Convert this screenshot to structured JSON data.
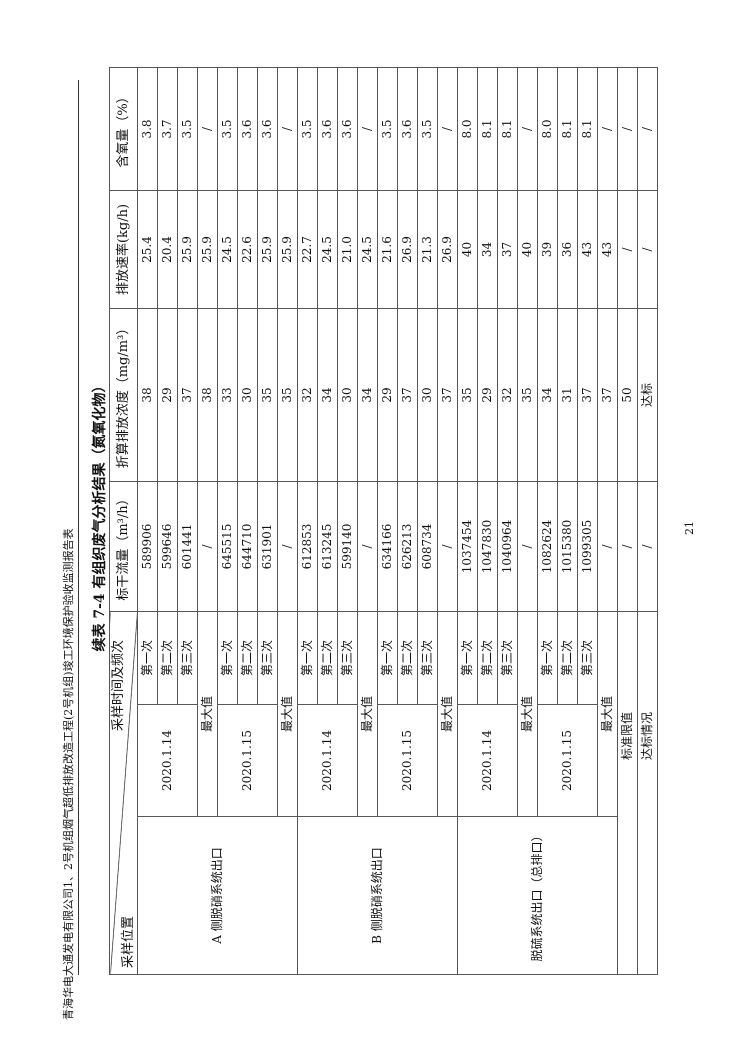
{
  "page_header": "青海华电大通发电有限公司1、2号机组烟气超低排放改造工程(2号机组)竣工环境保护验收监测报告表",
  "title": "续表 7-4  有组织废气分析结果（氮氧化物）",
  "page_number": "21",
  "columns": {
    "location": "采样位置",
    "time_freq": "采样时间及频次",
    "flow": "标干流量（m³/h）",
    "concentration": "折算排放浓度（mg/m³）",
    "rate": "排放速率(kg/h)",
    "oxygen": "含氧量（%）"
  },
  "max_label": "最大值",
  "locations": [
    {
      "name": "A 侧脱硝系统出口",
      "dates": [
        {
          "date": "2020.1.14",
          "samples": [
            {
              "freq": "第一次",
              "flow": "589906",
              "conc": "38",
              "rate": "25.4",
              "o2": "3.8"
            },
            {
              "freq": "第二次",
              "flow": "599646",
              "conc": "29",
              "rate": "20.4",
              "o2": "3.7"
            },
            {
              "freq": "第三次",
              "flow": "601441",
              "conc": "37",
              "rate": "25.9",
              "o2": "3.5"
            }
          ],
          "max": {
            "flow": "/",
            "conc": "38",
            "rate": "25.9",
            "o2": "/"
          }
        },
        {
          "date": "2020.1.15",
          "samples": [
            {
              "freq": "第一次",
              "flow": "645515",
              "conc": "33",
              "rate": "24.5",
              "o2": "3.5"
            },
            {
              "freq": "第二次",
              "flow": "644710",
              "conc": "30",
              "rate": "22.6",
              "o2": "3.6"
            },
            {
              "freq": "第三次",
              "flow": "631901",
              "conc": "35",
              "rate": "25.9",
              "o2": "3.6"
            }
          ],
          "max": {
            "flow": "/",
            "conc": "35",
            "rate": "25.9",
            "o2": "/"
          }
        }
      ]
    },
    {
      "name": "B 侧脱硝系统出口",
      "dates": [
        {
          "date": "2020.1.14",
          "samples": [
            {
              "freq": "第一次",
              "flow": "612853",
              "conc": "32",
              "rate": "22.7",
              "o2": "3.5"
            },
            {
              "freq": "第二次",
              "flow": "613245",
              "conc": "34",
              "rate": "24.5",
              "o2": "3.6"
            },
            {
              "freq": "第三次",
              "flow": "599140",
              "conc": "30",
              "rate": "21.0",
              "o2": "3.6"
            }
          ],
          "max": {
            "flow": "/",
            "conc": "34",
            "rate": "24.5",
            "o2": "/"
          }
        },
        {
          "date": "2020.1.15",
          "samples": [
            {
              "freq": "第一次",
              "flow": "634166",
              "conc": "29",
              "rate": "21.6",
              "o2": "3.5"
            },
            {
              "freq": "第二次",
              "flow": "626213",
              "conc": "37",
              "rate": "26.9",
              "o2": "3.6"
            },
            {
              "freq": "第三次",
              "flow": "608734",
              "conc": "30",
              "rate": "21.3",
              "o2": "3.5"
            }
          ],
          "max": {
            "flow": "/",
            "conc": "37",
            "rate": "26.9",
            "o2": "/"
          }
        }
      ]
    },
    {
      "name": "脱硫系统出口（总排口）",
      "dates": [
        {
          "date": "2020.1.14",
          "samples": [
            {
              "freq": "第一次",
              "flow": "1037454",
              "conc": "35",
              "rate": "40",
              "o2": "8.0"
            },
            {
              "freq": "第二次",
              "flow": "1047830",
              "conc": "29",
              "rate": "34",
              "o2": "8.1"
            },
            {
              "freq": "第三次",
              "flow": "1040964",
              "conc": "32",
              "rate": "37",
              "o2": "8.1"
            }
          ],
          "max": {
            "flow": "/",
            "conc": "35",
            "rate": "40",
            "o2": "/"
          }
        },
        {
          "date": "2020.1.15",
          "samples": [
            {
              "freq": "第一次",
              "flow": "1082624",
              "conc": "34",
              "rate": "39",
              "o2": "8.0"
            },
            {
              "freq": "第二次",
              "flow": "1015380",
              "conc": "31",
              "rate": "36",
              "o2": "8.1"
            },
            {
              "freq": "第三次",
              "flow": "1099305",
              "conc": "37",
              "rate": "43",
              "o2": "8.1"
            }
          ],
          "max": {
            "flow": "/",
            "conc": "37",
            "rate": "43",
            "o2": "/"
          }
        }
      ]
    }
  ],
  "footer_rows": [
    {
      "label": "标准限值",
      "flow": "/",
      "conc": "50",
      "rate": "/",
      "o2": "/"
    },
    {
      "label": "达标情况",
      "flow": "/",
      "conc": "达标",
      "rate": "/",
      "o2": "/"
    }
  ]
}
